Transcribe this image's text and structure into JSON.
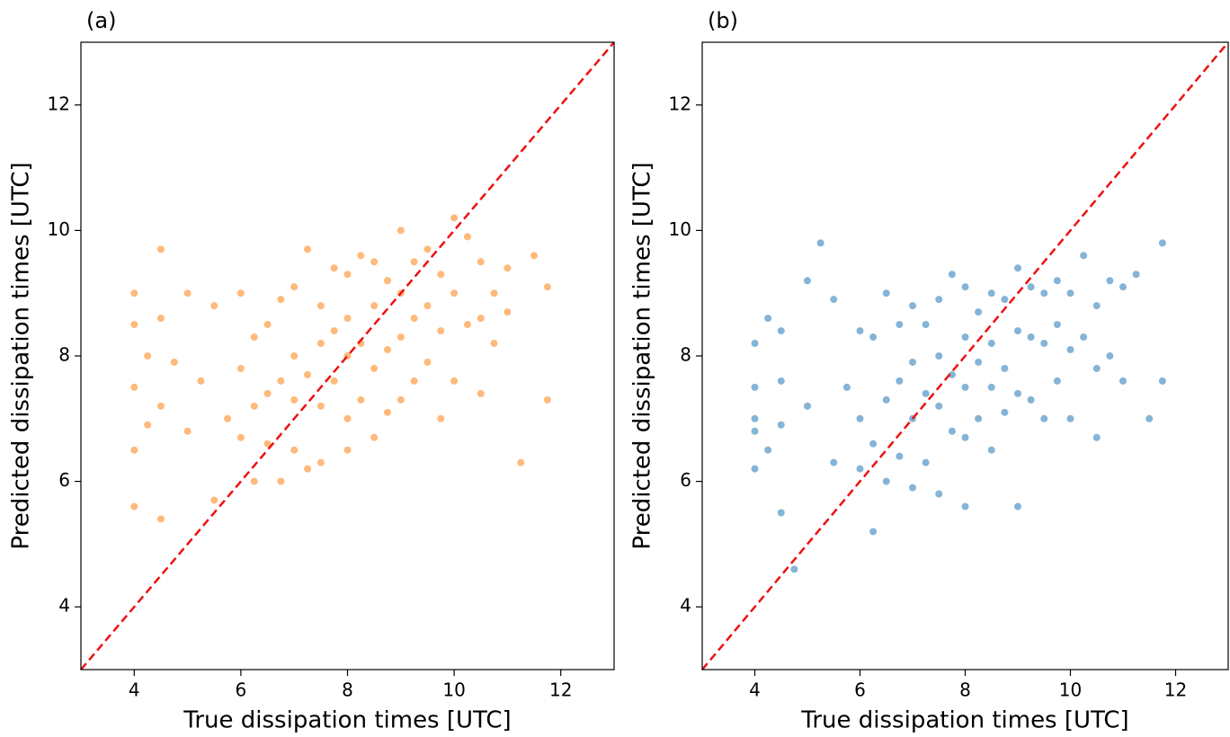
{
  "chart_data": [
    {
      "type": "scatter",
      "title": "(a)",
      "xlabel": "True dissipation times [UTC]",
      "ylabel": "Predicted dissipation times [UTC]",
      "color": "#ff7f0e",
      "identity_line_color": "#ee1111",
      "xlim": [
        3,
        13
      ],
      "ylim": [
        3,
        13
      ],
      "xticks": [
        4,
        6,
        8,
        10,
        12
      ],
      "yticks": [
        4,
        6,
        8,
        10,
        12
      ],
      "x": [
        4,
        4,
        4,
        4,
        4,
        4.25,
        4.25,
        4.5,
        4.5,
        4.5,
        4.5,
        4.75,
        5,
        5,
        5.25,
        5.5,
        5.5,
        5.75,
        6,
        6,
        6,
        6.25,
        6.25,
        6.25,
        6.5,
        6.5,
        6.5,
        6.75,
        6.75,
        6.75,
        7,
        7,
        7,
        7,
        7.25,
        7.25,
        7.25,
        7.5,
        7.5,
        7.5,
        7.5,
        7.75,
        7.75,
        7.75,
        8,
        8,
        8,
        8,
        8,
        8.25,
        8.25,
        8.25,
        8.5,
        8.5,
        8.5,
        8.5,
        8.75,
        8.75,
        8.75,
        9,
        9,
        9,
        9,
        9.25,
        9.25,
        9.25,
        9.5,
        9.5,
        9.5,
        9.75,
        9.75,
        9.75,
        10,
        10,
        10,
        10.25,
        10.25,
        10.5,
        10.5,
        10.5,
        10.75,
        10.75,
        11,
        11,
        11.25,
        11.5,
        11.75,
        11.75
      ],
      "y": [
        9.0,
        7.5,
        6.5,
        5.6,
        8.5,
        8.0,
        6.9,
        9.7,
        8.6,
        7.2,
        5.4,
        7.9,
        9.0,
        6.8,
        7.6,
        8.8,
        5.7,
        7.0,
        9.0,
        6.7,
        7.8,
        8.3,
        6.0,
        7.2,
        8.5,
        6.6,
        7.4,
        8.9,
        6.0,
        7.6,
        9.1,
        7.3,
        6.5,
        8.0,
        9.7,
        6.2,
        7.7,
        8.8,
        7.2,
        8.2,
        6.3,
        9.4,
        7.6,
        8.4,
        9.3,
        8.0,
        7.0,
        8.6,
        6.5,
        9.6,
        8.2,
        7.3,
        9.5,
        8.8,
        7.8,
        6.7,
        9.2,
        8.1,
        7.1,
        10.0,
        9.0,
        8.3,
        7.3,
        9.5,
        8.6,
        7.6,
        9.7,
        8.8,
        7.9,
        9.3,
        8.4,
        7.0,
        10.2,
        9.0,
        7.6,
        9.9,
        8.5,
        9.5,
        8.6,
        7.4,
        9.0,
        8.2,
        9.4,
        8.7,
        6.3,
        9.6,
        9.1,
        7.3
      ]
    },
    {
      "type": "scatter",
      "title": "(b)",
      "xlabel": "True dissipation times [UTC]",
      "ylabel": "Predicted dissipation times [UTC]",
      "color": "#1f77b4",
      "identity_line_color": "#ee1111",
      "xlim": [
        3,
        13
      ],
      "ylim": [
        3,
        13
      ],
      "xticks": [
        4,
        6,
        8,
        10,
        12
      ],
      "yticks": [
        4,
        6,
        8,
        10,
        12
      ],
      "x": [
        4,
        4,
        4,
        4,
        4,
        4.25,
        4.25,
        4.5,
        4.5,
        4.5,
        4.5,
        4.75,
        5,
        5,
        5.25,
        5.5,
        5.5,
        5.75,
        6,
        6,
        6,
        6.25,
        6.25,
        6.25,
        6.5,
        6.5,
        6.5,
        6.75,
        6.75,
        6.75,
        7,
        7,
        7,
        7,
        7.25,
        7.25,
        7.25,
        7.5,
        7.5,
        7.5,
        7.5,
        7.75,
        7.75,
        7.75,
        8,
        8,
        8,
        8,
        8,
        8.25,
        8.25,
        8.25,
        8.5,
        8.5,
        8.5,
        8.5,
        8.75,
        8.75,
        8.75,
        9,
        9,
        9,
        9,
        9.25,
        9.25,
        9.25,
        9.5,
        9.5,
        9.5,
        9.75,
        9.75,
        9.75,
        10,
        10,
        10,
        10.25,
        10.25,
        10.5,
        10.5,
        10.5,
        10.75,
        10.75,
        11,
        11,
        11.25,
        11.5,
        11.75,
        11.75
      ],
      "y": [
        8.2,
        7.5,
        6.8,
        6.2,
        7.0,
        8.6,
        6.5,
        8.4,
        7.6,
        6.9,
        5.5,
        4.6,
        9.2,
        7.2,
        9.8,
        8.9,
        6.3,
        7.5,
        8.4,
        7.0,
        6.2,
        8.3,
        6.6,
        5.2,
        9.0,
        7.3,
        6.0,
        8.5,
        7.6,
        6.4,
        8.8,
        7.9,
        7.0,
        5.9,
        8.5,
        7.4,
        6.3,
        8.9,
        8.0,
        7.2,
        5.8,
        9.3,
        7.7,
        6.8,
        9.1,
        8.3,
        7.5,
        6.7,
        5.6,
        8.7,
        7.9,
        7.0,
        9.0,
        8.2,
        7.5,
        6.5,
        8.9,
        7.8,
        7.1,
        9.4,
        8.4,
        7.4,
        5.6,
        9.1,
        8.3,
        7.3,
        9.0,
        8.2,
        7.0,
        9.2,
        8.5,
        7.6,
        9.0,
        8.1,
        7.0,
        9.6,
        8.3,
        8.8,
        7.8,
        6.7,
        9.2,
        8.0,
        9.1,
        7.6,
        9.3,
        7.0,
        9.8,
        7.6
      ]
    }
  ]
}
